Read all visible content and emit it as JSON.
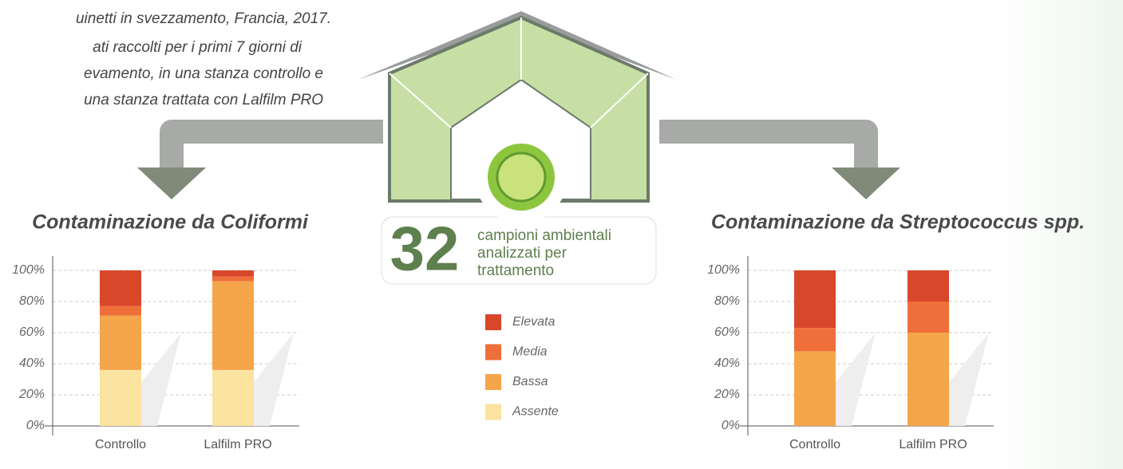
{
  "intro": {
    "lines": [
      "uinetti in svezzamento, Francia, 2017.",
      "ati raccolti per i primi 7 giorni di",
      "evamento, in una stanza controllo e",
      "una stanza trattata con Lalfilm PRO"
    ]
  },
  "badge": {
    "number": 32,
    "lines": [
      "campioni ambientali",
      "analizzati per",
      "trattamento"
    ]
  },
  "chart_data": [
    {
      "type": "stacked_bar",
      "title": "Contaminazione da Coliformi",
      "categories": [
        "Controllo",
        "Lalfilm PRO"
      ],
      "series": [
        {
          "name": "Assente",
          "color": "#fbe3a0",
          "values": [
            36,
            36
          ]
        },
        {
          "name": "Bassa",
          "color": "#f5a54a",
          "values": [
            35,
            57
          ]
        },
        {
          "name": "Media",
          "color": "#ef6f3a",
          "values": [
            6,
            3
          ]
        },
        {
          "name": "Elevata",
          "color": "#d9472b",
          "values": [
            23,
            4
          ]
        }
      ],
      "ylim": [
        0,
        100
      ],
      "yticks": [
        {
          "value": 0,
          "label": "0%"
        },
        {
          "value": 20,
          "label": "20%"
        },
        {
          "value": 40,
          "label": "40%"
        },
        {
          "value": 60,
          "label": "60%"
        },
        {
          "value": 80,
          "label": "80%"
        },
        {
          "value": 100,
          "label": "100%"
        }
      ],
      "grid": true
    },
    {
      "type": "stacked_bar",
      "title": "Contaminazione da Streptococcus spp.",
      "categories": [
        "Controllo",
        "Lalfilm PRO"
      ],
      "series": [
        {
          "name": "Assente",
          "color": "#fbe3a0",
          "values": [
            0,
            0
          ]
        },
        {
          "name": "Bassa",
          "color": "#f5a54a",
          "values": [
            48,
            60
          ]
        },
        {
          "name": "Media",
          "color": "#ef6f3a",
          "values": [
            15,
            20
          ]
        },
        {
          "name": "Elevata",
          "color": "#d9472b",
          "values": [
            37,
            20
          ]
        }
      ],
      "ylim": [
        0,
        100
      ],
      "yticks": [
        {
          "value": 0,
          "label": "0%"
        },
        {
          "value": 20,
          "label": "20%"
        },
        {
          "value": 40,
          "label": "40%"
        },
        {
          "value": 60,
          "label": "60%"
        },
        {
          "value": 80,
          "label": "80%"
        },
        {
          "value": 100,
          "label": "100%"
        }
      ],
      "grid": true
    }
  ]
}
